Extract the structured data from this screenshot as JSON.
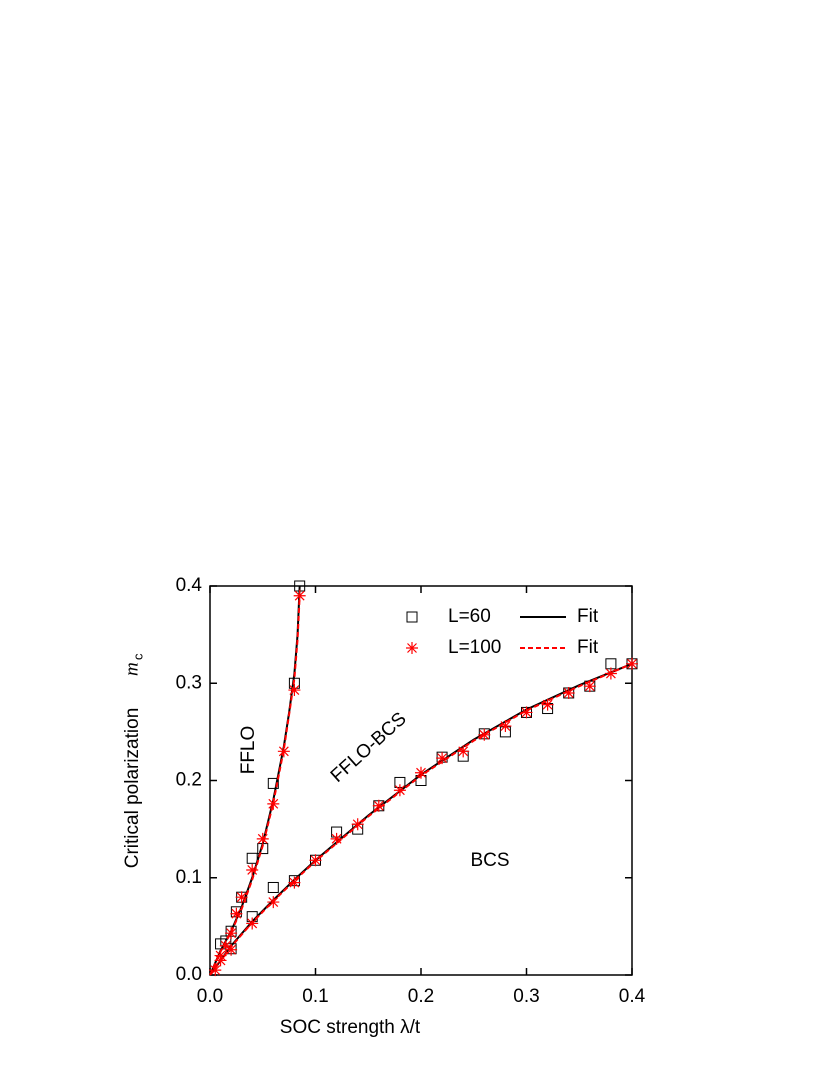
{
  "chart_data": {
    "type": "scatter",
    "xlabel": "SOC strength λ/t",
    "ylabel": "Critical polarization",
    "ylabel_symbol": "m",
    "ylabel_subscript": "c",
    "annotations": [
      "FFLO",
      "FFLO-BCS",
      "BCS"
    ],
    "xlim": [
      0,
      0.4
    ],
    "ylim": [
      0,
      0.4
    ],
    "xticks": [
      {
        "value": 0,
        "label": "0.0"
      },
      0.1,
      0.2,
      0.3,
      0.4
    ],
    "yticks": [
      {
        "value": 0,
        "label": "0.0"
      },
      0.1,
      0.2,
      0.3,
      0.4
    ],
    "legend": "upper right",
    "series": [
      {
        "name": "L=60",
        "marker": "square",
        "color": "#000000",
        "x": [
          0.01,
          0.015,
          0.02,
          0.025,
          0.03,
          0.04,
          0.05,
          0.06,
          0.08,
          0.085,
          0.02,
          0.04,
          0.06,
          0.08,
          0.1,
          0.12,
          0.14,
          0.16,
          0.18,
          0.2,
          0.22,
          0.24,
          0.26,
          0.28,
          0.3,
          0.32,
          0.34,
          0.36,
          0.38,
          0.4
        ],
        "values": [
          0.032,
          0.035,
          0.045,
          0.065,
          0.08,
          0.12,
          0.13,
          0.197,
          0.3,
          0.4,
          0.027,
          0.06,
          0.09,
          0.097,
          0.118,
          0.147,
          0.15,
          0.174,
          0.198,
          0.2,
          0.224,
          0.225,
          0.248,
          0.25,
          0.27,
          0.274,
          0.29,
          0.297,
          0.32,
          0.32
        ]
      },
      {
        "name": "Fit",
        "line": "solid",
        "color": "#000000",
        "x": [
          0,
          0.01,
          0.02,
          0.03,
          0.04,
          0.05,
          0.06,
          0.07,
          0.075,
          0.08,
          0.083,
          0.085,
          null,
          0,
          0.02,
          0.04,
          0.06,
          0.08,
          0.1,
          0.15,
          0.2,
          0.25,
          0.3,
          0.35,
          0.4
        ],
        "values": [
          0,
          0.025,
          0.045,
          0.07,
          0.1,
          0.135,
          0.18,
          0.235,
          0.27,
          0.31,
          0.35,
          0.4,
          null,
          0,
          0.03,
          0.055,
          0.077,
          0.098,
          0.118,
          0.164,
          0.206,
          0.242,
          0.273,
          0.298,
          0.32
        ]
      },
      {
        "name": "L=100",
        "marker": "star",
        "color": "#ff0000",
        "x": [
          0.005,
          0.01,
          0.015,
          0.02,
          0.025,
          0.03,
          0.04,
          0.05,
          0.06,
          0.07,
          0.08,
          0.085,
          0.01,
          0.02,
          0.04,
          0.06,
          0.08,
          0.1,
          0.12,
          0.14,
          0.16,
          0.18,
          0.2,
          0.22,
          0.24,
          0.26,
          0.28,
          0.3,
          0.32,
          0.34,
          0.36,
          0.38,
          0.4
        ],
        "values": [
          0.005,
          0.02,
          0.03,
          0.043,
          0.063,
          0.08,
          0.108,
          0.14,
          0.176,
          0.23,
          0.293,
          0.39,
          0.015,
          0.026,
          0.053,
          0.075,
          0.095,
          0.118,
          0.14,
          0.155,
          0.174,
          0.19,
          0.208,
          0.223,
          0.23,
          0.247,
          0.256,
          0.27,
          0.278,
          0.29,
          0.297,
          0.31,
          0.32
        ]
      },
      {
        "name": "Fit",
        "line": "dashed",
        "color": "#ff0000",
        "x": [
          0,
          0.01,
          0.02,
          0.03,
          0.04,
          0.05,
          0.06,
          0.07,
          0.075,
          0.08,
          0.083,
          0.085,
          null,
          0,
          0.02,
          0.04,
          0.06,
          0.08,
          0.1,
          0.15,
          0.2,
          0.25,
          0.3,
          0.35,
          0.4
        ],
        "values": [
          0,
          0.024,
          0.044,
          0.068,
          0.098,
          0.133,
          0.177,
          0.232,
          0.268,
          0.305,
          0.345,
          0.39,
          null,
          0,
          0.029,
          0.054,
          0.076,
          0.097,
          0.117,
          0.163,
          0.205,
          0.241,
          0.272,
          0.297,
          0.32
        ]
      }
    ]
  }
}
